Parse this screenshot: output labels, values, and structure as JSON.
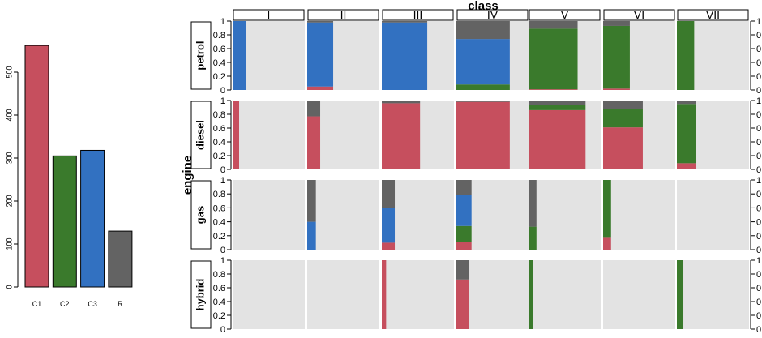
{
  "chart_data": [
    {
      "type": "bar",
      "categories": [
        "C1",
        "C2",
        "C3",
        "R"
      ],
      "values": [
        562,
        305,
        318,
        130
      ],
      "colors": [
        "#c64f5e",
        "#3a7a2c",
        "#3271c1",
        "#636363"
      ],
      "ylim": [
        0,
        600
      ],
      "yticks": [
        0,
        100,
        200,
        300,
        400,
        500
      ],
      "grid": false
    },
    {
      "type": "bar",
      "stacked": true,
      "layout": "facet-grid",
      "column_title": "class",
      "row_title": "engine",
      "columns": [
        "I",
        "II",
        "III",
        "IV",
        "V",
        "VI",
        "VII"
      ],
      "rows": [
        "petrol",
        "diesel",
        "gas",
        "hybrid"
      ],
      "stack_order": [
        "C1",
        "C2",
        "C3",
        "R"
      ],
      "colors": {
        "C1": "#c64f5e",
        "C2": "#3a7a2c",
        "C3": "#3271c1",
        "R": "#636363"
      },
      "panel_background": "#e3e3e3",
      "ylim": [
        0,
        1
      ],
      "yticks": [
        "0",
        "0.2",
        "0.4",
        "0.6",
        "0.8",
        "1"
      ],
      "cells": [
        {
          "row": "petrol",
          "column": "I",
          "width": 0.18,
          "shares": {
            "C1": 0,
            "C2": 0,
            "C3": 1,
            "R": 0
          }
        },
        {
          "row": "petrol",
          "column": "II",
          "width": 0.36,
          "shares": {
            "C1": 0.05,
            "C2": 0,
            "C3": 0.93,
            "R": 0.02
          }
        },
        {
          "row": "petrol",
          "column": "III",
          "width": 0.63,
          "shares": {
            "C1": 0,
            "C2": 0,
            "C3": 0.98,
            "R": 0.02
          }
        },
        {
          "row": "petrol",
          "column": "IV",
          "width": 0.74,
          "shares": {
            "C1": 0,
            "C2": 0.08,
            "C3": 0.66,
            "R": 0.26
          }
        },
        {
          "row": "petrol",
          "column": "V",
          "width": 0.68,
          "shares": {
            "C1": 0.01,
            "C2": 0.88,
            "C3": 0,
            "R": 0.11
          }
        },
        {
          "row": "petrol",
          "column": "VI",
          "width": 0.37,
          "shares": {
            "C1": 0.02,
            "C2": 0.91,
            "C3": 0,
            "R": 0.07
          }
        },
        {
          "row": "petrol",
          "column": "VII",
          "width": 0.24,
          "shares": {
            "C1": 0,
            "C2": 1,
            "C3": 0,
            "R": 0
          }
        },
        {
          "row": "diesel",
          "column": "I",
          "width": 0.09,
          "shares": {
            "C1": 1,
            "C2": 0,
            "C3": 0,
            "R": 0
          }
        },
        {
          "row": "diesel",
          "column": "II",
          "width": 0.18,
          "shares": {
            "C1": 0.77,
            "C2": 0,
            "C3": 0,
            "R": 0.23
          }
        },
        {
          "row": "diesel",
          "column": "III",
          "width": 0.53,
          "shares": {
            "C1": 0.96,
            "C2": 0,
            "C3": 0,
            "R": 0.04
          }
        },
        {
          "row": "diesel",
          "column": "IV",
          "width": 0.74,
          "shares": {
            "C1": 0.98,
            "C2": 0,
            "C3": 0,
            "R": 0.02
          }
        },
        {
          "row": "diesel",
          "column": "V",
          "width": 0.79,
          "shares": {
            "C1": 0.86,
            "C2": 0.07,
            "C3": 0,
            "R": 0.07
          }
        },
        {
          "row": "diesel",
          "column": "VI",
          "width": 0.55,
          "shares": {
            "C1": 0.61,
            "C2": 0.27,
            "C3": 0,
            "R": 0.12
          }
        },
        {
          "row": "diesel",
          "column": "VII",
          "width": 0.26,
          "shares": {
            "C1": 0.09,
            "C2": 0.86,
            "C3": 0,
            "R": 0.05
          }
        },
        {
          "row": "gas",
          "column": "I",
          "width": 0,
          "shares": {
            "C1": 0,
            "C2": 0,
            "C3": 0,
            "R": 0
          }
        },
        {
          "row": "gas",
          "column": "II",
          "width": 0.12,
          "shares": {
            "C1": 0,
            "C2": 0,
            "C3": 0.4,
            "R": 0.6
          }
        },
        {
          "row": "gas",
          "column": "III",
          "width": 0.18,
          "shares": {
            "C1": 0.1,
            "C2": 0,
            "C3": 0.5,
            "R": 0.4
          }
        },
        {
          "row": "gas",
          "column": "IV",
          "width": 0.21,
          "shares": {
            "C1": 0.11,
            "C2": 0.23,
            "C3": 0.44,
            "R": 0.22
          }
        },
        {
          "row": "gas",
          "column": "V",
          "width": 0.11,
          "shares": {
            "C1": 0,
            "C2": 0.33,
            "C3": 0,
            "R": 0.67
          }
        },
        {
          "row": "gas",
          "column": "VI",
          "width": 0.11,
          "shares": {
            "C1": 0.17,
            "C2": 0.83,
            "C3": 0,
            "R": 0
          }
        },
        {
          "row": "gas",
          "column": "VII",
          "width": 0,
          "shares": {
            "C1": 0,
            "C2": 0,
            "C3": 0,
            "R": 0
          }
        },
        {
          "row": "hybrid",
          "column": "I",
          "width": 0,
          "shares": {
            "C1": 0,
            "C2": 0,
            "C3": 0,
            "R": 0
          }
        },
        {
          "row": "hybrid",
          "column": "II",
          "width": 0,
          "shares": {
            "C1": 0,
            "C2": 0,
            "C3": 0,
            "R": 0
          }
        },
        {
          "row": "hybrid",
          "column": "III",
          "width": 0.06,
          "shares": {
            "C1": 1,
            "C2": 0,
            "C3": 0,
            "R": 0
          }
        },
        {
          "row": "hybrid",
          "column": "IV",
          "width": 0.18,
          "shares": {
            "C1": 0.72,
            "C2": 0,
            "C3": 0,
            "R": 0.28
          }
        },
        {
          "row": "hybrid",
          "column": "V",
          "width": 0.06,
          "shares": {
            "C1": 0,
            "C2": 1,
            "C3": 0,
            "R": 0
          }
        },
        {
          "row": "hybrid",
          "column": "VI",
          "width": 0,
          "shares": {
            "C1": 0,
            "C2": 0,
            "C3": 0,
            "R": 0
          }
        },
        {
          "row": "hybrid",
          "column": "VII",
          "width": 0.09,
          "shares": {
            "C1": 0,
            "C2": 1,
            "C3": 0,
            "R": 0
          }
        }
      ]
    }
  ]
}
